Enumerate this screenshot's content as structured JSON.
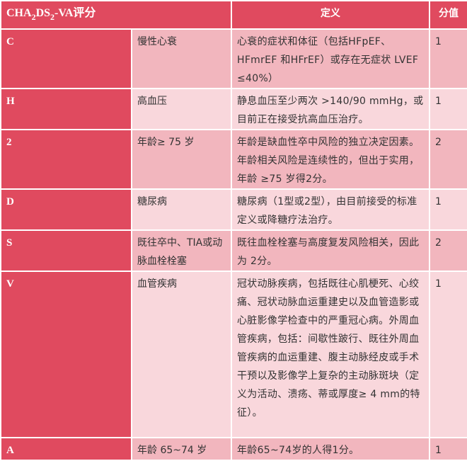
{
  "header": {
    "score_name": {
      "prefix": "CHA",
      "sub1": "2",
      "mid": "DS",
      "sub2": "2",
      "suffix": "-VA评分"
    },
    "definition": "定义",
    "points": "分值"
  },
  "rows": [
    {
      "key": "C",
      "factor": "慢性心衰",
      "definition": "心衰的症状和体征（包括HFpEF、HFmrEF 和HFrEF）或存在无症状 LVEF ≤40%）",
      "points": "1"
    },
    {
      "key": "H",
      "factor": "高血压",
      "definition": "静息血压至少两次 >140/90 mmHg，或目前正在接受抗高血压治疗。",
      "points": "1"
    },
    {
      "key": "2",
      "factor": "年龄≥ 75 岁",
      "definition": "年龄是缺血性卒中风险的独立决定因素。年龄相关风险是连续性的，但出于实用，年龄 ≥75 岁得2分。",
      "points": "2"
    },
    {
      "key": "D",
      "factor": "糖尿病",
      "definition": "糖尿病（1型或2型），由目前接受的标准定义或降糖疗法治疗。",
      "points": "1"
    },
    {
      "key": "S",
      "factor": "既往卒中、TIA或动脉血栓栓塞",
      "definition": "既往血栓栓塞与高度复发风险相关，因此为 2分。",
      "points": "2"
    },
    {
      "key": "V",
      "factor": "血管疾病",
      "definition": "冠状动脉疾病，包括既往心肌梗死、心绞痛、冠状动脉血运重建史以及血管造影或心脏影像学检查中的严重冠心病。外周血管疾病，包括：间歇性跛行、既往外周血管疾病的血运重建、腹主动脉经皮或手术干预以及影像学上复杂的主动脉斑块（定义为活动、溃疡、蒂或厚度≥ 4 mm的特征）。",
      "points": "1"
    },
    {
      "key": "A",
      "factor": "年龄 65~74 岁",
      "definition": "年龄65~74岁的人得1分。",
      "points": "1"
    }
  ],
  "colors": {
    "header": "#e04a5f",
    "key_column": "#e04a5f",
    "row_dark": "#f2b6be",
    "row_light": "#f9d7dc"
  }
}
